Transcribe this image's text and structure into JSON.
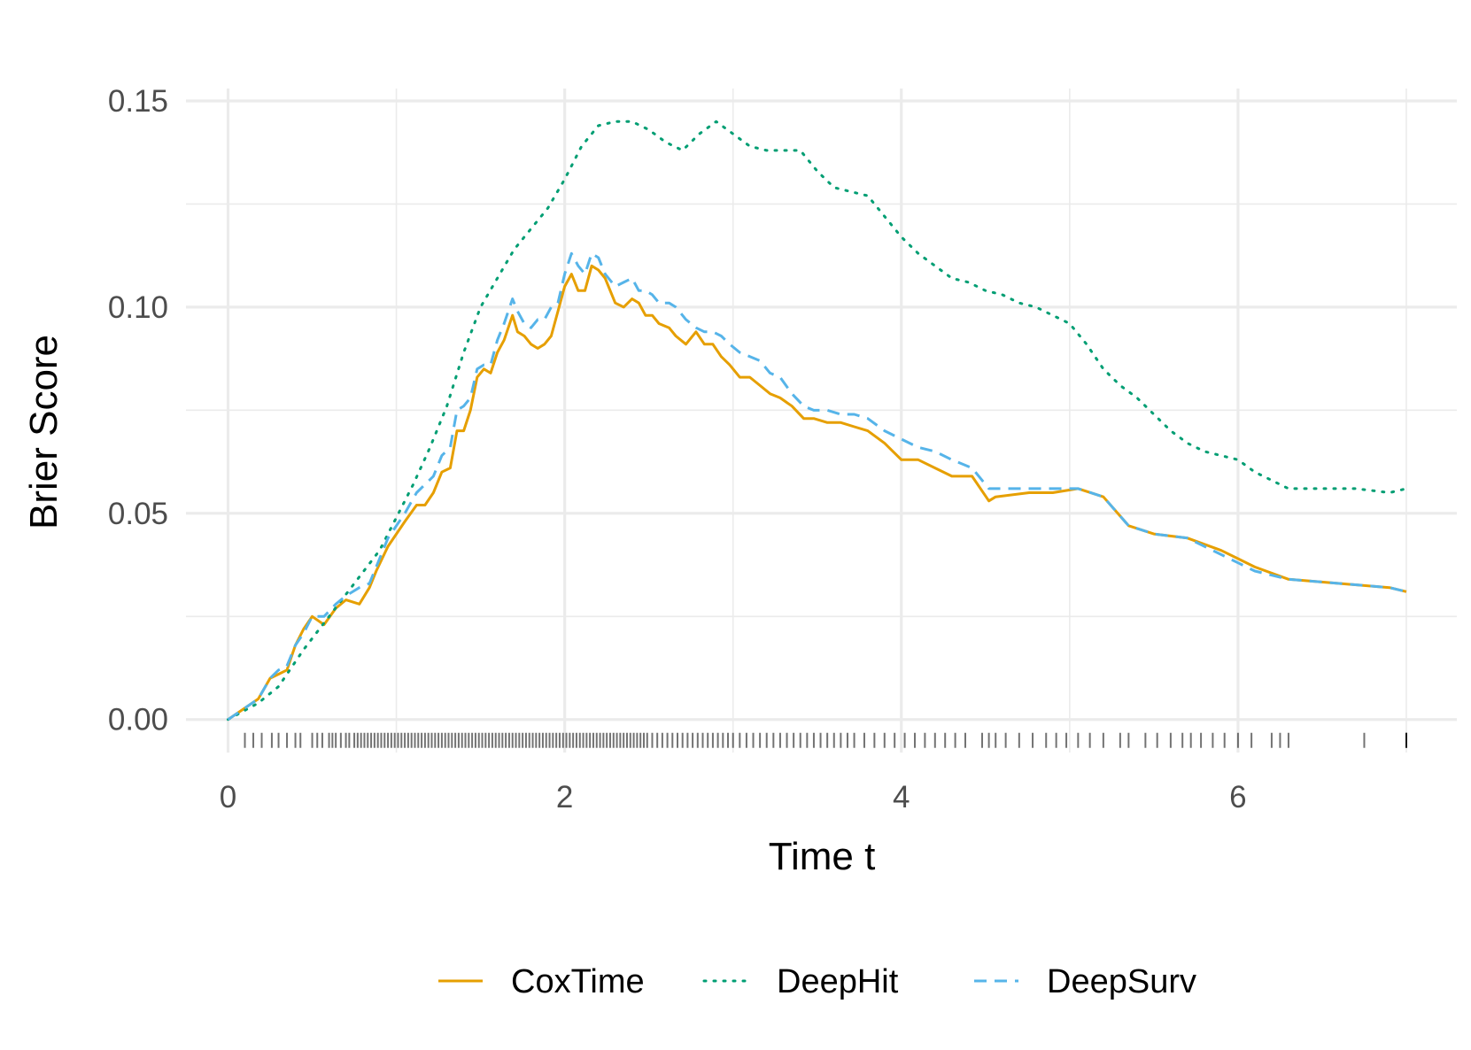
{
  "chart_data": {
    "type": "line",
    "title": "",
    "xlabel": "Time t",
    "ylabel": "Brier Score",
    "xlim": [
      -0.25,
      7.3
    ],
    "ylim": [
      -0.008,
      0.153
    ],
    "xticks": [
      0,
      2,
      4,
      6
    ],
    "xtick_labels": [
      "0",
      "2",
      "4",
      "6"
    ],
    "xminor": [
      1,
      3,
      5,
      7
    ],
    "yticks": [
      0,
      0.05,
      0.1,
      0.15
    ],
    "ytick_labels": [
      "0.00",
      "0.05",
      "0.10",
      "0.15"
    ],
    "yminor": [
      0.025,
      0.075,
      0.125
    ],
    "grid": true,
    "legend_position": "bottom",
    "rug_color": "#000000",
    "series": [
      {
        "name": "CoxTime",
        "color": "#E69F00",
        "dash": "solid",
        "x": [
          0,
          0.18,
          0.25,
          0.3,
          0.35,
          0.4,
          0.45,
          0.5,
          0.57,
          0.64,
          0.7,
          0.78,
          0.84,
          0.88,
          0.95,
          1.0,
          1.05,
          1.12,
          1.17,
          1.22,
          1.27,
          1.32,
          1.36,
          1.4,
          1.44,
          1.48,
          1.52,
          1.56,
          1.6,
          1.64,
          1.69,
          1.72,
          1.76,
          1.8,
          1.84,
          1.88,
          1.92,
          1.96,
          2.0,
          2.04,
          2.08,
          2.12,
          2.16,
          2.2,
          2.24,
          2.3,
          2.35,
          2.4,
          2.44,
          2.48,
          2.52,
          2.56,
          2.62,
          2.66,
          2.72,
          2.78,
          2.83,
          2.88,
          2.93,
          2.98,
          3.04,
          3.1,
          3.16,
          3.22,
          3.28,
          3.35,
          3.42,
          3.48,
          3.56,
          3.64,
          3.72,
          3.8,
          3.9,
          4.0,
          4.1,
          4.2,
          4.3,
          4.42,
          4.52,
          4.56,
          4.76,
          4.9,
          5.05,
          5.2,
          5.35,
          5.5,
          5.7,
          5.9,
          6.1,
          6.3,
          6.6,
          6.9,
          7.0
        ],
        "y": [
          0.0,
          0.005,
          0.01,
          0.011,
          0.012,
          0.018,
          0.022,
          0.025,
          0.023,
          0.027,
          0.029,
          0.028,
          0.032,
          0.036,
          0.042,
          0.045,
          0.048,
          0.052,
          0.052,
          0.055,
          0.06,
          0.061,
          0.07,
          0.07,
          0.075,
          0.083,
          0.085,
          0.084,
          0.089,
          0.092,
          0.098,
          0.094,
          0.093,
          0.091,
          0.09,
          0.091,
          0.093,
          0.099,
          0.105,
          0.108,
          0.104,
          0.104,
          0.11,
          0.109,
          0.107,
          0.101,
          0.1,
          0.102,
          0.101,
          0.098,
          0.098,
          0.096,
          0.095,
          0.093,
          0.091,
          0.094,
          0.091,
          0.091,
          0.088,
          0.086,
          0.083,
          0.083,
          0.081,
          0.079,
          0.078,
          0.076,
          0.073,
          0.073,
          0.072,
          0.072,
          0.071,
          0.07,
          0.067,
          0.063,
          0.063,
          0.061,
          0.059,
          0.059,
          0.053,
          0.054,
          0.055,
          0.055,
          0.056,
          0.054,
          0.047,
          0.045,
          0.044,
          0.041,
          0.037,
          0.034,
          0.033,
          0.032,
          0.031
        ]
      },
      {
        "name": "DeepHit",
        "color": "#009E73",
        "dash": "dotted",
        "x": [
          0,
          0.18,
          0.3,
          0.45,
          0.6,
          0.75,
          0.9,
          1.0,
          1.1,
          1.2,
          1.3,
          1.4,
          1.5,
          1.6,
          1.7,
          1.8,
          1.9,
          2.0,
          2.1,
          2.2,
          2.3,
          2.4,
          2.5,
          2.6,
          2.7,
          2.8,
          2.9,
          3.0,
          3.1,
          3.2,
          3.3,
          3.4,
          3.5,
          3.6,
          3.7,
          3.8,
          3.9,
          4.0,
          4.1,
          4.2,
          4.3,
          4.4,
          4.5,
          4.6,
          4.7,
          4.8,
          4.9,
          5.0,
          5.1,
          5.2,
          5.3,
          5.4,
          5.5,
          5.6,
          5.7,
          5.8,
          5.9,
          6.0,
          6.1,
          6.2,
          6.3,
          6.5,
          6.7,
          6.9,
          7.0
        ],
        "y": [
          0.0,
          0.004,
          0.008,
          0.017,
          0.025,
          0.033,
          0.041,
          0.049,
          0.057,
          0.066,
          0.076,
          0.089,
          0.1,
          0.107,
          0.114,
          0.119,
          0.124,
          0.131,
          0.139,
          0.144,
          0.145,
          0.145,
          0.143,
          0.14,
          0.138,
          0.142,
          0.145,
          0.142,
          0.139,
          0.138,
          0.138,
          0.138,
          0.133,
          0.129,
          0.128,
          0.127,
          0.122,
          0.117,
          0.113,
          0.11,
          0.107,
          0.106,
          0.104,
          0.103,
          0.101,
          0.1,
          0.098,
          0.096,
          0.091,
          0.085,
          0.081,
          0.078,
          0.074,
          0.07,
          0.067,
          0.065,
          0.064,
          0.063,
          0.06,
          0.058,
          0.056,
          0.056,
          0.056,
          0.055,
          0.056
        ]
      },
      {
        "name": "DeepSurv",
        "color": "#56B4E9",
        "dash": "dashed",
        "x": [
          0,
          0.18,
          0.25,
          0.3,
          0.35,
          0.4,
          0.45,
          0.5,
          0.57,
          0.64,
          0.7,
          0.78,
          0.84,
          0.88,
          0.95,
          1.0,
          1.05,
          1.12,
          1.17,
          1.22,
          1.27,
          1.32,
          1.36,
          1.4,
          1.44,
          1.48,
          1.52,
          1.56,
          1.6,
          1.64,
          1.69,
          1.72,
          1.76,
          1.8,
          1.84,
          1.88,
          1.92,
          1.96,
          2.0,
          2.04,
          2.08,
          2.12,
          2.16,
          2.2,
          2.24,
          2.3,
          2.35,
          2.4,
          2.44,
          2.48,
          2.52,
          2.56,
          2.62,
          2.66,
          2.72,
          2.78,
          2.83,
          2.88,
          2.93,
          2.98,
          3.04,
          3.1,
          3.16,
          3.22,
          3.28,
          3.35,
          3.42,
          3.48,
          3.56,
          3.64,
          3.72,
          3.8,
          3.9,
          4.0,
          4.1,
          4.2,
          4.3,
          4.42,
          4.52,
          4.56,
          4.76,
          4.9,
          5.05,
          5.2,
          5.35,
          5.5,
          5.7,
          5.9,
          6.1,
          6.3,
          6.6,
          6.9,
          7.0
        ],
        "y": [
          0.0,
          0.005,
          0.01,
          0.012,
          0.013,
          0.018,
          0.021,
          0.025,
          0.025,
          0.028,
          0.03,
          0.032,
          0.033,
          0.037,
          0.044,
          0.047,
          0.05,
          0.055,
          0.057,
          0.059,
          0.064,
          0.066,
          0.075,
          0.076,
          0.078,
          0.085,
          0.086,
          0.086,
          0.092,
          0.096,
          0.102,
          0.099,
          0.096,
          0.095,
          0.097,
          0.097,
          0.1,
          0.101,
          0.108,
          0.113,
          0.11,
          0.108,
          0.113,
          0.112,
          0.108,
          0.105,
          0.106,
          0.107,
          0.104,
          0.104,
          0.103,
          0.101,
          0.101,
          0.1,
          0.097,
          0.095,
          0.094,
          0.094,
          0.093,
          0.091,
          0.089,
          0.088,
          0.087,
          0.084,
          0.083,
          0.079,
          0.076,
          0.075,
          0.075,
          0.074,
          0.074,
          0.073,
          0.07,
          0.068,
          0.066,
          0.065,
          0.063,
          0.061,
          0.056,
          0.056,
          0.056,
          0.056,
          0.056,
          0.054,
          0.047,
          0.045,
          0.044,
          0.04,
          0.036,
          0.034,
          0.033,
          0.032,
          0.031
        ]
      }
    ],
    "rug": [
      0.1,
      0.15,
      0.2,
      0.26,
      0.3,
      0.35,
      0.4,
      0.43,
      0.5,
      0.53,
      0.56,
      0.6,
      0.62,
      0.64,
      0.67,
      0.7,
      0.72,
      0.75,
      0.77,
      0.79,
      0.81,
      0.83,
      0.85,
      0.87,
      0.89,
      0.91,
      0.93,
      0.95,
      0.97,
      0.99,
      1.01,
      1.03,
      1.05,
      1.07,
      1.09,
      1.11,
      1.13,
      1.15,
      1.17,
      1.19,
      1.21,
      1.23,
      1.25,
      1.27,
      1.29,
      1.31,
      1.33,
      1.35,
      1.37,
      1.39,
      1.41,
      1.43,
      1.45,
      1.47,
      1.49,
      1.51,
      1.53,
      1.55,
      1.57,
      1.59,
      1.61,
      1.63,
      1.65,
      1.67,
      1.69,
      1.71,
      1.73,
      1.75,
      1.77,
      1.79,
      1.81,
      1.83,
      1.85,
      1.87,
      1.89,
      1.91,
      1.93,
      1.95,
      1.97,
      1.99,
      2.01,
      2.03,
      2.05,
      2.07,
      2.09,
      2.11,
      2.13,
      2.15,
      2.17,
      2.19,
      2.21,
      2.23,
      2.25,
      2.27,
      2.29,
      2.31,
      2.33,
      2.35,
      2.37,
      2.39,
      2.41,
      2.43,
      2.45,
      2.47,
      2.49,
      2.52,
      2.55,
      2.58,
      2.61,
      2.64,
      2.67,
      2.7,
      2.73,
      2.76,
      2.79,
      2.82,
      2.85,
      2.88,
      2.91,
      2.94,
      2.97,
      3.0,
      3.04,
      3.08,
      3.12,
      3.16,
      3.2,
      3.24,
      3.28,
      3.32,
      3.36,
      3.4,
      3.44,
      3.48,
      3.52,
      3.56,
      3.6,
      3.64,
      3.68,
      3.72,
      3.78,
      3.84,
      3.9,
      3.96,
      4.02,
      4.08,
      4.14,
      4.2,
      4.26,
      4.32,
      4.38,
      4.48,
      4.52,
      4.56,
      4.62,
      4.7,
      4.78,
      4.86,
      4.92,
      4.98,
      5.05,
      5.12,
      5.2,
      5.3,
      5.35,
      5.45,
      5.52,
      5.6,
      5.67,
      5.72,
      5.78,
      5.85,
      5.92,
      6.0,
      6.08,
      6.2,
      6.25,
      6.3,
      6.75,
      7.0,
      7.0,
      7.0
    ]
  },
  "legend": {
    "items": [
      {
        "label": "CoxTime",
        "color": "#E69F00",
        "dash": "solid"
      },
      {
        "label": "DeepHit",
        "color": "#009E73",
        "dash": "dotted"
      },
      {
        "label": "DeepSurv",
        "color": "#56B4E9",
        "dash": "dashed"
      }
    ]
  }
}
